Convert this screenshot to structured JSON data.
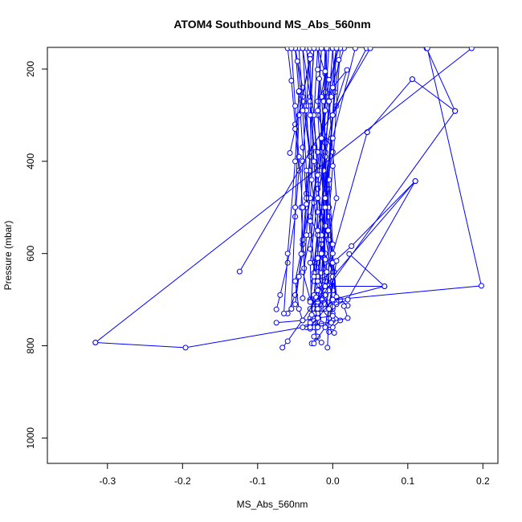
{
  "chart_data": {
    "type": "scatter",
    "title": "ATOM4 Southbound MS_Abs_560nm",
    "xlabel": "MS_Abs_560nm",
    "ylabel": "Pressure (mbar)",
    "xlim": [
      -0.38,
      0.22
    ],
    "ylim": [
      1055,
      153
    ],
    "y_reversed": true,
    "xticks": [
      -0.3,
      -0.2,
      -0.1,
      0.0,
      0.1,
      0.2
    ],
    "xtick_labels": [
      "-0.3",
      "-0.2",
      "-0.1",
      "0.0",
      "0.1",
      "0.2"
    ],
    "yticks": [
      200,
      400,
      600,
      800,
      1000
    ],
    "ytick_labels": [
      "200",
      "400",
      "600",
      "800",
      "1000"
    ],
    "grid": false,
    "legend": "none",
    "color": "#0000ff",
    "marker": "open-circle",
    "series": [
      {
        "x": [
          0.008,
          -0.01,
          -0.02,
          -0.03,
          -0.01,
          0.0,
          -0.02,
          -0.02,
          -0.03,
          -0.01,
          0.0,
          0.01,
          0.0,
          -0.005,
          0.002
        ],
        "y": [
          155,
          260,
          410,
          520,
          600,
          640,
          660,
          680,
          700,
          710,
          730,
          745,
          760,
          770,
          772
        ]
      },
      {
        "x": [
          -0.05,
          -0.04,
          -0.03,
          -0.035,
          -0.03,
          -0.04,
          -0.03,
          -0.02,
          -0.03,
          -0.03
        ],
        "y": [
          155,
          240,
          380,
          470,
          560,
          640,
          700,
          720,
          740,
          763
        ]
      },
      {
        "x": [
          -0.015,
          -0.02,
          -0.01,
          -0.02,
          -0.01,
          -0.02,
          -0.015,
          -0.02,
          -0.03,
          -0.02,
          -0.025,
          -0.02,
          -0.028
        ],
        "y": [
          155,
          270,
          380,
          480,
          560,
          620,
          660,
          690,
          720,
          740,
          760,
          780,
          795
        ]
      },
      {
        "x": [
          0.005,
          -0.005,
          -0.015,
          -0.02,
          -0.015,
          -0.02,
          -0.025,
          -0.015,
          -0.02,
          -0.02,
          -0.025,
          -0.015
        ],
        "y": [
          155,
          255,
          350,
          450,
          520,
          600,
          660,
          700,
          730,
          760,
          780,
          793
        ]
      },
      {
        "x": [
          -0.02,
          -0.01,
          -0.02,
          0.0,
          -0.01,
          -0.02,
          -0.01,
          -0.015,
          -0.02,
          -0.025,
          -0.02,
          -0.03,
          -0.035,
          -0.03
        ],
        "y": [
          155,
          210,
          300,
          380,
          470,
          550,
          620,
          660,
          690,
          720,
          740,
          755,
          760,
          763
        ]
      },
      {
        "x": [
          0.015,
          -0.005,
          0.0,
          0.005,
          -0.005,
          0.002,
          0.0,
          0.01,
          0.02
        ],
        "y": [
          155,
          260,
          380,
          480,
          560,
          640,
          680,
          700,
          713
        ]
      },
      {
        "x": [
          -0.035,
          -0.025,
          -0.02,
          -0.03,
          -0.025,
          -0.02,
          -0.025,
          -0.02
        ],
        "y": [
          155,
          300,
          420,
          530,
          620,
          690,
          730,
          760
        ]
      },
      {
        "x": [
          -0.01,
          -0.01,
          -0.015,
          -0.02,
          -0.01,
          0.0,
          0.005,
          0.0,
          0.005
        ],
        "y": [
          155,
          250,
          350,
          460,
          560,
          650,
          700,
          720,
          705
        ]
      },
      {
        "x": [
          -0.06,
          -0.055,
          -0.05,
          -0.045,
          -0.05,
          -0.06,
          -0.07,
          -0.075
        ],
        "y": [
          155,
          225,
          320,
          420,
          520,
          620,
          690,
          721
        ]
      },
      {
        "x": [
          -0.045,
          -0.04,
          -0.03,
          -0.035,
          -0.04,
          -0.05,
          -0.06
        ],
        "y": [
          155,
          270,
          390,
          500,
          600,
          690,
          730
        ]
      },
      {
        "x": [
          0.005,
          -0.002,
          -0.01,
          -0.005,
          -0.01,
          -0.02,
          -0.01,
          0.0,
          -0.005
        ],
        "y": [
          155,
          260,
          360,
          460,
          560,
          640,
          690,
          745,
          755
        ]
      },
      {
        "x": [
          -0.005,
          -0.01,
          -0.015,
          -0.01,
          -0.015,
          -0.01,
          -0.015,
          -0.005
        ],
        "y": [
          155,
          270,
          380,
          490,
          580,
          660,
          720,
          740
        ]
      },
      {
        "x": [
          -0.04,
          -0.03,
          -0.025,
          -0.03,
          -0.04,
          -0.05,
          -0.045,
          -0.04
        ],
        "y": [
          155,
          260,
          370,
          480,
          580,
          660,
          720,
          745
        ]
      },
      {
        "x": [
          -0.02,
          -0.015,
          -0.01,
          -0.01,
          -0.015,
          -0.02,
          -0.018,
          -0.015
        ],
        "y": [
          155,
          260,
          360,
          470,
          570,
          650,
          720,
          752
        ]
      },
      {
        "x": [
          -0.03,
          -0.03,
          -0.025,
          -0.02,
          -0.02,
          -0.025,
          -0.03
        ],
        "y": [
          155,
          280,
          400,
          510,
          610,
          690,
          750
        ]
      },
      {
        "x": [
          -0.01,
          -0.005,
          -0.01,
          -0.015,
          -0.01,
          -0.005,
          -0.01
        ],
        "y": [
          155,
          270,
          390,
          500,
          600,
          680,
          720
        ]
      },
      {
        "x": [
          0.0,
          0.003,
          -0.002,
          -0.008,
          -0.005,
          0.0,
          -0.003
        ],
        "y": [
          155,
          250,
          350,
          460,
          570,
          660,
          720
        ]
      },
      {
        "x": [
          -0.025,
          -0.03,
          -0.02,
          -0.025,
          -0.03,
          -0.02,
          -0.022
        ],
        "y": [
          155,
          270,
          380,
          490,
          590,
          670,
          695
        ]
      },
      {
        "x": [
          -0.05,
          -0.045,
          -0.04,
          -0.035,
          -0.04,
          -0.045,
          -0.05
        ],
        "y": [
          155,
          250,
          370,
          480,
          570,
          650,
          710
        ]
      },
      {
        "x": [
          0.01,
          0.005,
          0.0,
          -0.005,
          0.0,
          0.005
        ],
        "y": [
          155,
          280,
          410,
          520,
          620,
          710
        ]
      },
      {
        "x": [
          -0.03,
          -0.035,
          -0.04,
          -0.042,
          -0.038
        ],
        "y": [
          155,
          280,
          400,
          500,
          632
        ]
      },
      {
        "x": [
          -0.01,
          -0.012,
          -0.01,
          -0.008,
          -0.012,
          -0.01
        ],
        "y": [
          155,
          270,
          380,
          500,
          610,
          680
        ]
      },
      {
        "x": [
          -0.02,
          -0.025,
          -0.02,
          -0.015,
          -0.018
        ],
        "y": [
          155,
          300,
          430,
          560,
          668
        ]
      },
      {
        "x": [
          0.0,
          -0.005,
          -0.01,
          -0.005,
          0.0,
          0.005
        ],
        "y": [
          155,
          270,
          390,
          500,
          600,
          694
        ]
      },
      {
        "x": [
          -0.055,
          -0.05,
          -0.045,
          -0.04,
          -0.042
        ],
        "y": [
          155,
          280,
          390,
          500,
          601
        ]
      },
      {
        "x": [
          -0.015,
          -0.02,
          -0.015,
          -0.01,
          -0.015
        ],
        "y": [
          155,
          290,
          420,
          540,
          642
        ]
      },
      {
        "x": [
          -0.04,
          -0.035,
          -0.03,
          -0.035,
          -0.04
        ],
        "y": [
          155,
          290,
          420,
          560,
          697
        ]
      },
      {
        "x": [
          0.005,
          0.0,
          -0.005,
          0.0,
          -0.002
        ],
        "y": [
          155,
          300,
          440,
          580,
          713
        ]
      },
      {
        "x": [
          -0.025,
          -0.03,
          -0.028,
          -0.02,
          -0.025
        ],
        "y": [
          155,
          300,
          440,
          560,
          642
        ]
      },
      {
        "x": [
          -0.008,
          -0.01,
          -0.012,
          -0.006,
          -0.005
        ],
        "y": [
          155,
          290,
          420,
          550,
          669
        ]
      },
      {
        "x": [
          0.045,
          0.0,
          -0.02,
          -0.03,
          -0.028
        ],
        "y": [
          155,
          300,
          480,
          620,
          733
        ]
      },
      {
        "x": [
          -0.03,
          -0.04,
          -0.05,
          -0.057
        ],
        "y": [
          170,
          260,
          330,
          382
        ]
      },
      {
        "x": [
          -0.047,
          -0.04,
          -0.035,
          -0.035
        ],
        "y": [
          183,
          290,
          420,
          493
        ]
      },
      {
        "x": [
          -0.03,
          -0.045,
          -0.05,
          -0.055
        ],
        "y": [
          178,
          300,
          500,
          720
        ]
      },
      {
        "x": [
          -0.02,
          -0.01,
          -0.005
        ],
        "y": [
          201,
          205,
          223
        ]
      },
      {
        "x": [
          -0.045,
          -0.05,
          -0.06,
          -0.065
        ],
        "y": [
          248,
          400,
          600,
          730
        ]
      },
      {
        "x": [
          -0.018,
          -0.015,
          -0.012,
          -0.01
        ],
        "y": [
          221,
          350,
          500,
          613
        ]
      },
      {
        "x": [
          0.008,
          0.0,
          -0.01,
          -0.015
        ],
        "y": [
          180,
          300,
          500,
          700
        ]
      },
      {
        "x": [
          0.03,
          0.0,
          -0.02,
          -0.03
        ],
        "y": [
          155,
          350,
          550,
          704
        ]
      },
      {
        "x": [
          0.125,
          0.163
        ],
        "y": [
          155,
          291
        ]
      },
      {
        "x": [
          0.106,
          0.163
        ],
        "y": [
          222,
          291
        ]
      },
      {
        "x": [
          0.05,
          -0.124
        ],
        "y": [
          155,
          639
        ]
      },
      {
        "x": [
          0.0,
          0.019,
          0.0,
          -0.01
        ],
        "y": [
          240,
          202,
          300,
          480
        ]
      },
      {
        "x": [
          0.106,
          0.046
        ],
        "y": [
          222,
          337
        ]
      },
      {
        "x": [
          0.046,
          0.0,
          -0.02
        ],
        "y": [
          337,
          600,
          720
        ]
      },
      {
        "x": [
          0.163,
          -0.02
        ],
        "y": [
          291,
          705
        ]
      },
      {
        "x": [
          0.126,
          0.198,
          -0.03
        ],
        "y": [
          155,
          670,
          705
        ]
      },
      {
        "x": [
          0.185,
          -0.316
        ],
        "y": [
          155,
          793
        ]
      },
      {
        "x": [
          -0.316,
          -0.196,
          -0.04,
          0.02,
          0.015
        ],
        "y": [
          793,
          804,
          760,
          740,
          714
        ]
      },
      {
        "x": [
          0.11,
          0.0,
          -0.06,
          -0.067
        ],
        "y": [
          443,
          650,
          790,
          804
        ]
      },
      {
        "x": [
          0.11,
          0.02,
          0.0
        ],
        "y": [
          443,
          700,
          715
        ]
      },
      {
        "x": [
          0.11,
          0.025,
          0.0
        ],
        "y": [
          443,
          584,
          620
        ]
      },
      {
        "x": [
          0.022,
          0.069,
          0.0,
          -0.03
        ],
        "y": [
          601,
          671,
          700,
          760
        ]
      },
      {
        "x": [
          0.069,
          -0.01,
          -0.02
        ],
        "y": [
          671,
          671,
          680
        ]
      },
      {
        "x": [
          0.005,
          -0.01,
          -0.025
        ],
        "y": [
          616,
          760,
          795
        ]
      },
      {
        "x": [
          -0.007,
          -0.005,
          -0.02,
          -0.025
        ],
        "y": [
          804,
          720,
          660,
          650
        ]
      },
      {
        "x": [
          -0.002,
          0.0,
          -0.008,
          -0.015
        ],
        "y": [
          750,
          700,
          640,
          600
        ]
      },
      {
        "x": [
          -0.075,
          -0.04,
          -0.02,
          0.0
        ],
        "y": [
          750,
          745,
          740,
          735
        ]
      }
    ]
  }
}
